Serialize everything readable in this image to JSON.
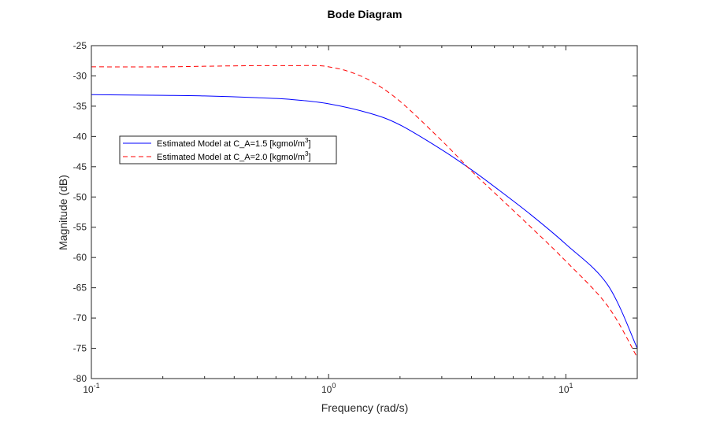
{
  "chart_data": {
    "type": "line",
    "title": "Bode Diagram",
    "xlabel": "Frequency (rad/s)",
    "ylabel": "Magnitude (dB)",
    "xscale": "log",
    "xlim": [
      0.1,
      20
    ],
    "ylim": [
      -80,
      -25
    ],
    "yticks": [
      -25,
      -30,
      -35,
      -40,
      -45,
      -50,
      -55,
      -60,
      -65,
      -70,
      -75,
      -80
    ],
    "xticks": [
      {
        "value": 0.1,
        "base": "10",
        "exp": "-1"
      },
      {
        "value": 1,
        "base": "10",
        "exp": "0"
      },
      {
        "value": 10,
        "base": "10",
        "exp": "1"
      }
    ],
    "grid": false,
    "box": true,
    "legend_position": "upper-left",
    "series": [
      {
        "name": "Estimated Model at C_A=1.5 [kgmol/m3]",
        "legend_main": "Estimated  Model  at  C_A=1.5  [kgmol/m",
        "legend_sup": "3",
        "legend_end": "]",
        "color": "#0000ff",
        "style": "solid",
        "x": [
          0.1,
          0.2,
          0.3,
          0.5,
          0.7,
          1.0,
          1.5,
          2.0,
          3.0,
          4.0,
          5.0,
          7.0,
          10.0,
          15.0,
          20.0
        ],
        "y": [
          -33.1,
          -33.2,
          -33.3,
          -33.6,
          -33.9,
          -34.6,
          -36.2,
          -38.1,
          -42.2,
          -45.5,
          -48.3,
          -52.7,
          -57.8,
          -64.5,
          -75.0
        ]
      },
      {
        "name": "Estimated Model at C_A=2.0 [kgmol/m3]",
        "legend_main": "Estimated  Model  at  C_A=2.0  [kgmol/m",
        "legend_sup": "3",
        "legend_end": "]",
        "color": "#ff0000",
        "style": "dashed",
        "x": [
          0.1,
          0.2,
          0.3,
          0.5,
          0.7,
          0.9,
          1.0,
          1.2,
          1.5,
          2.0,
          3.0,
          4.0,
          5.0,
          7.0,
          10.0,
          15.0,
          20.0
        ],
        "y": [
          -28.5,
          -28.5,
          -28.4,
          -28.3,
          -28.3,
          -28.3,
          -28.5,
          -29.2,
          -30.8,
          -34.2,
          -40.7,
          -45.7,
          -49.3,
          -54.7,
          -60.6,
          -68.0,
          -76.5
        ]
      }
    ]
  }
}
